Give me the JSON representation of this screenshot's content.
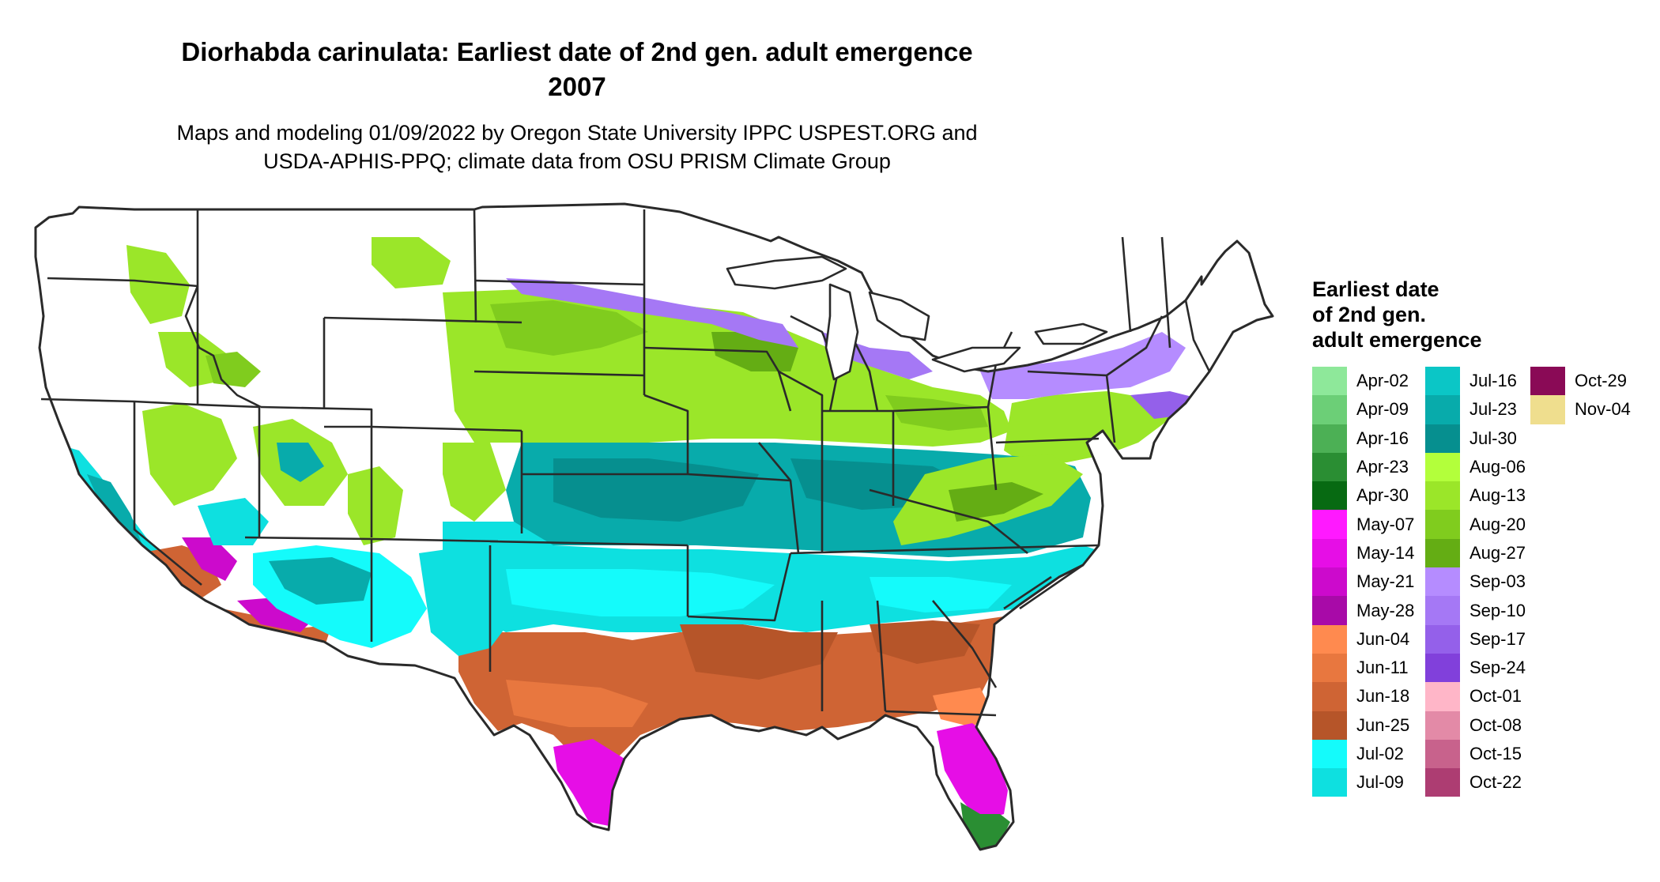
{
  "title": {
    "line1": "Diorhabda carinulata: Earliest date of 2nd gen. adult emergence",
    "line2": "2007"
  },
  "subtitle": {
    "line1": "Maps and modeling 01/09/2022 by Oregon State University IPPC USPEST.ORG and",
    "line2": "USDA-APHIS-PPQ; climate data from OSU PRISM Climate Group"
  },
  "legend": {
    "title_lines": [
      "Earliest date",
      "of 2nd gen.",
      "adult emergence"
    ],
    "columns": [
      [
        {
          "label": "Apr-02",
          "color": "#8ee89a"
        },
        {
          "label": "Apr-09",
          "color": "#6ccf77"
        },
        {
          "label": "Apr-16",
          "color": "#4cb055"
        },
        {
          "label": "Apr-23",
          "color": "#2a8e33"
        },
        {
          "label": "Apr-30",
          "color": "#076a12"
        },
        {
          "label": "May-07",
          "color": "#ff19ff"
        },
        {
          "label": "May-14",
          "color": "#e60ee6"
        },
        {
          "label": "May-21",
          "color": "#cc0acc"
        },
        {
          "label": "May-28",
          "color": "#a80aa8"
        },
        {
          "label": "Jun-04",
          "color": "#ff8a4f"
        },
        {
          "label": "Jun-11",
          "color": "#e8773f"
        },
        {
          "label": "Jun-18",
          "color": "#cf6434"
        },
        {
          "label": "Jun-25",
          "color": "#b65529"
        },
        {
          "label": "Jul-02",
          "color": "#14fbfb"
        },
        {
          "label": "Jul-09",
          "color": "#0ee0e0"
        }
      ],
      [
        {
          "label": "Jul-16",
          "color": "#0bc6c6"
        },
        {
          "label": "Jul-23",
          "color": "#08abab"
        },
        {
          "label": "Jul-30",
          "color": "#068f8f"
        },
        {
          "label": "Aug-06",
          "color": "#b3ff3b"
        },
        {
          "label": "Aug-13",
          "color": "#9be629"
        },
        {
          "label": "Aug-20",
          "color": "#80cc1e"
        },
        {
          "label": "Aug-27",
          "color": "#64ad14"
        },
        {
          "label": "Sep-03",
          "color": "#b58cff"
        },
        {
          "label": "Sep-10",
          "color": "#a578f5"
        },
        {
          "label": "Sep-17",
          "color": "#9460ea"
        },
        {
          "label": "Sep-24",
          "color": "#8140db"
        },
        {
          "label": "Oct-01",
          "color": "#ffb6c8"
        },
        {
          "label": "Oct-08",
          "color": "#e38aa7"
        },
        {
          "label": "Oct-15",
          "color": "#c8628c"
        },
        {
          "label": "Oct-22",
          "color": "#ad3d72"
        }
      ],
      [
        {
          "label": "Oct-29",
          "color": "#8a0a56"
        },
        {
          "label": "Nov-04",
          "color": "#efde8e"
        }
      ]
    ]
  }
}
